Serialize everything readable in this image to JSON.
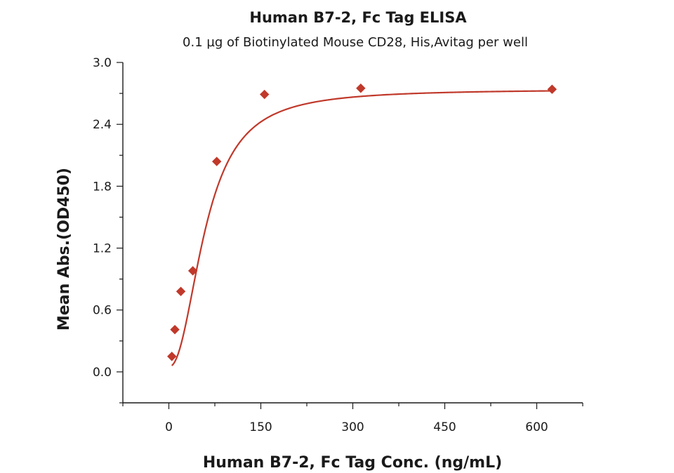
{
  "chart_data": {
    "type": "scatter",
    "title": "Human B7-2, Fc Tag ELISA",
    "subtitle": "0.1 µg of Biotinylated Mouse CD28, His,Avitag per well",
    "xlabel": "Human B7-2, Fc Tag Conc. (ng/mL)",
    "ylabel": "Mean Abs.(OD450)",
    "xlim": [
      -75,
      675
    ],
    "ylim": [
      -0.3,
      3.0
    ],
    "x_ticks": [
      0,
      150,
      300,
      450,
      600
    ],
    "x_tick_labels": [
      "0",
      "150",
      "300",
      "450",
      "600"
    ],
    "y_ticks": [
      0.0,
      0.6,
      1.2,
      1.8,
      2.4,
      3.0
    ],
    "y_tick_labels": [
      "0.0",
      "0.6",
      "1.2",
      "1.8",
      "2.4",
      "3.0"
    ],
    "grid": false,
    "series": [
      {
        "color": "#c0392b",
        "marker": "diamond",
        "x": [
          4.88,
          9.77,
          19.5,
          39.1,
          78.1,
          156,
          313,
          625
        ],
        "y": [
          0.15,
          0.41,
          0.78,
          0.98,
          2.04,
          2.69,
          2.75,
          2.74
        ]
      }
    ],
    "fit_curve": {
      "type": "4PL",
      "color": "#c0392b",
      "bottom": 0.05,
      "top": 2.74,
      "ec50": 60,
      "hill": 2.2
    }
  }
}
